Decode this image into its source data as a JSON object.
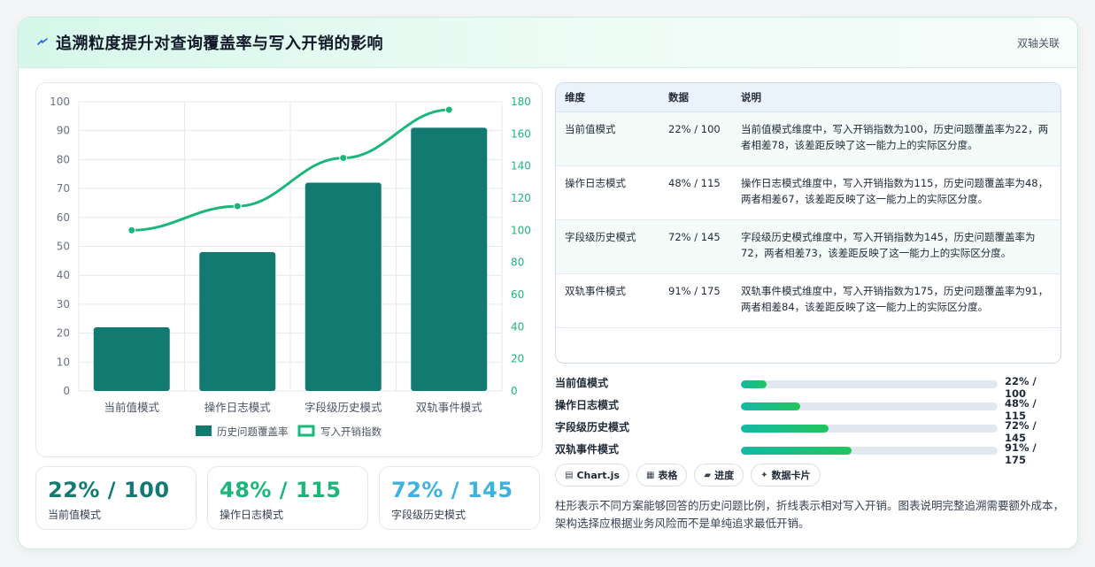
{
  "header": {
    "title": "追溯粒度提升对查询覆盖率与写入开销的影响",
    "badge": "双轴关联"
  },
  "colors": {
    "bar": "#127a70",
    "line": "#1bb77a",
    "accent_teal": "#127a70",
    "accent_green": "#1bb77a",
    "accent_sky": "#3bb2e0"
  },
  "chart_data": {
    "type": "bar",
    "categories": [
      "当前值模式",
      "操作日志模式",
      "字段级历史模式",
      "双轨事件模式"
    ],
    "series": [
      {
        "name": "历史问题覆盖率",
        "type": "bar",
        "axis": "left",
        "values": [
          22,
          48,
          72,
          91
        ]
      },
      {
        "name": "写入开销指数",
        "type": "line",
        "axis": "right",
        "values": [
          100,
          115,
          145,
          175
        ]
      }
    ],
    "y_left": {
      "lim": [
        0,
        100
      ],
      "ticks": [
        "0",
        "10",
        "20",
        "30",
        "40",
        "50",
        "60",
        "70",
        "80",
        "90",
        "100"
      ]
    },
    "y_right": {
      "lim": [
        0,
        180
      ],
      "ticks": [
        "0",
        "20",
        "40",
        "60",
        "80",
        "100",
        "120",
        "140",
        "160",
        "180"
      ]
    },
    "legend": "bottom",
    "grid": true
  },
  "stats": [
    {
      "value": "22% / 100",
      "label": "当前值模式"
    },
    {
      "value": "48% / 115",
      "label": "操作日志模式"
    },
    {
      "value": "72% / 145",
      "label": "字段级历史模式"
    }
  ],
  "table": {
    "headers": [
      "维度",
      "数据",
      "说明"
    ],
    "rows": [
      {
        "dim": "当前值模式",
        "data": "22% / 100",
        "desc": "当前值模式维度中，写入开销指数为100，历史问题覆盖率为22，两者相差78，该差距反映了这一能力上的实际区分度。"
      },
      {
        "dim": "操作日志模式",
        "data": "48% / 115",
        "desc": "操作日志模式维度中，写入开销指数为115，历史问题覆盖率为48，两者相差67，该差距反映了这一能力上的实际区分度。"
      },
      {
        "dim": "字段级历史模式",
        "data": "72% / 145",
        "desc": "字段级历史模式维度中，写入开销指数为145，历史问题覆盖率为72，两者相差73，该差距反映了这一能力上的实际区分度。"
      },
      {
        "dim": "双轨事件模式",
        "data": "91% / 175",
        "desc": "双轨事件模式维度中，写入开销指数为175，历史问题覆盖率为91，两者相差84，该差距反映了这一能力上的实际区分度。"
      }
    ]
  },
  "progress": [
    {
      "label": "当前值模式",
      "value_text": "22% / 100",
      "fraction": 0.1
    },
    {
      "label": "操作日志模式",
      "value_text": "48% / 115",
      "fraction": 0.23
    },
    {
      "label": "字段级历史模式",
      "value_text": "72% / 145",
      "fraction": 0.34
    },
    {
      "label": "双轨事件模式",
      "value_text": "91% / 175",
      "fraction": 0.43
    }
  ],
  "chips": [
    {
      "icon": "▤",
      "icon_name": "chart-icon",
      "label": "Chart.js"
    },
    {
      "icon": "▦",
      "icon_name": "table-icon",
      "label": "表格"
    },
    {
      "icon": "▰",
      "icon_name": "progress-icon",
      "label": "进度"
    },
    {
      "icon": "✦",
      "icon_name": "card-icon",
      "label": "数据卡片"
    }
  ],
  "note": "柱形表示不同方案能够回答的历史问题比例，折线表示相对写入开销。图表说明完整追溯需要额外成本，架构选择应根据业务风险而不是单纯追求最低开销。"
}
